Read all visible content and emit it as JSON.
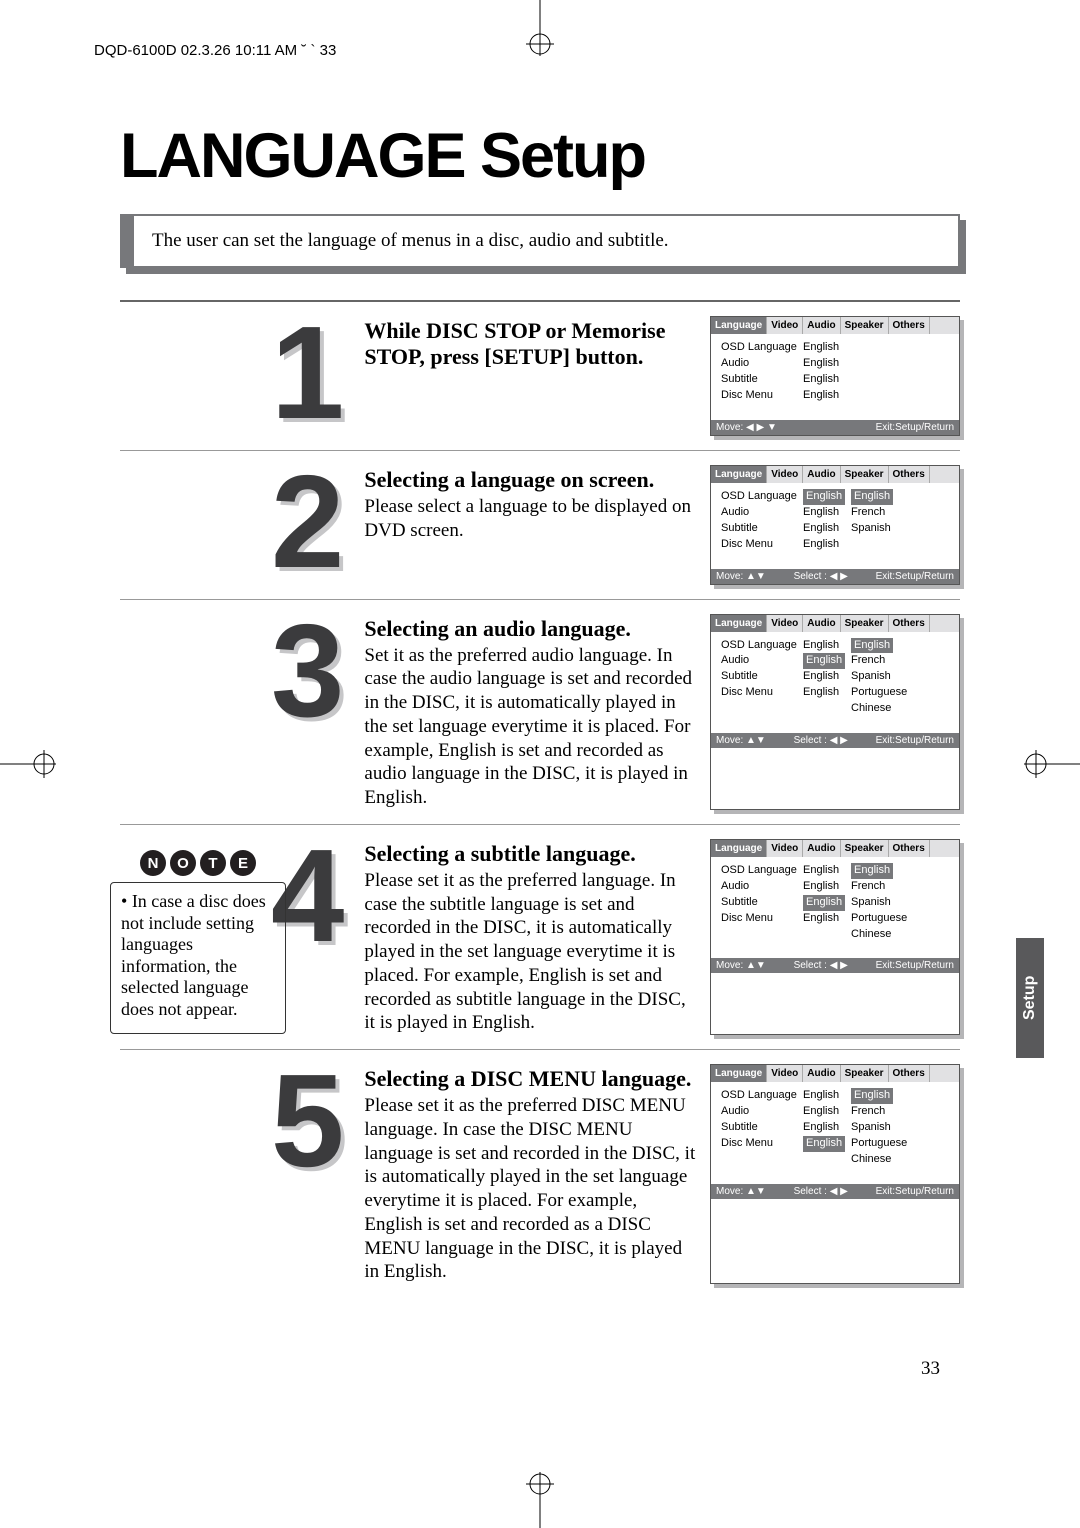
{
  "header": "DQD-6100D 02.3.26 10:11 AM ˘ ` 33",
  "title": "LANGUAGE Setup",
  "intro": "The user can set the language of menus in a disc, audio and subtitle.",
  "note_letters": [
    "N",
    "O",
    "T",
    "E"
  ],
  "note_text": "In case a disc does not include setting languages information, the selected language does not appear.",
  "side_tab": "Setup",
  "page_number": "33",
  "tabs": [
    "Language",
    "Video",
    "Audio",
    "Speaker",
    "Others"
  ],
  "rows_labels": [
    "OSD Language",
    "Audio",
    "Subtitle",
    "Disc Menu"
  ],
  "steps": [
    {
      "num": "1",
      "heading": "While DISC STOP or Memorise STOP, press [SETUP] button.",
      "body": "",
      "menu": {
        "highlight_row": null,
        "col2": [
          "English",
          "English",
          "English",
          "English"
        ],
        "col3": [],
        "footer_left": "Move: ◀ ▶ ▼",
        "footer_mid": "",
        "footer_right": "Exit:Setup/Return"
      }
    },
    {
      "num": "2",
      "heading": "Selecting a language on screen.",
      "body": "Please select a language to be displayed on DVD screen.",
      "menu": {
        "highlight_row": 0,
        "col2": [
          "English",
          "English",
          "English",
          "English"
        ],
        "col2_hl": [
          true,
          false,
          false,
          false
        ],
        "col3": [
          "English",
          "French",
          "Spanish"
        ],
        "footer_left": "Move: ▲▼",
        "footer_mid": "Select : ◀ ▶",
        "footer_right": "Exit:Setup/Return"
      }
    },
    {
      "num": "3",
      "heading": "Selecting an audio language.",
      "body": "Set it as the preferred audio language. In case the audio language is set and recorded in the DISC, it is automatically played in the set language everytime it is placed. For example, English is set and recorded as audio language in the DISC, it is played in English.",
      "menu": {
        "highlight_row": 1,
        "col2": [
          "English",
          "English",
          "English",
          "English"
        ],
        "col2_hl": [
          false,
          true,
          false,
          false
        ],
        "col3": [
          "English",
          "French",
          "Spanish",
          "Portuguese",
          "Chinese"
        ],
        "footer_left": "Move: ▲▼",
        "footer_mid": "Select : ◀ ▶",
        "footer_right": "Exit:Setup/Return"
      }
    },
    {
      "num": "4",
      "heading": "Selecting a subtitle language.",
      "body": "Please set it as the preferred language. In case the subtitle language is set and recorded in the DISC, it is automatically played in the set language everytime it is placed. For example, English is set and recorded as subtitle language in the DISC, it is played in English.",
      "menu": {
        "highlight_row": 2,
        "col2": [
          "English",
          "English",
          "English",
          "English"
        ],
        "col2_hl": [
          false,
          false,
          true,
          false
        ],
        "col3": [
          "English",
          "French",
          "Spanish",
          "Portuguese",
          "Chinese"
        ],
        "footer_left": "Move: ▲▼",
        "footer_mid": "Select : ◀ ▶",
        "footer_right": "Exit:Setup/Return"
      }
    },
    {
      "num": "5",
      "heading": "Selecting a DISC MENU language.",
      "body": "Please set it as the preferred DISC MENU language. In case the DISC MENU language is set and recorded in the DISC, it is automatically played in the set language everytime it is placed. For example, English is set and recorded as a DISC MENU language in the DISC, it is played in English.",
      "menu": {
        "highlight_row": 3,
        "col2": [
          "English",
          "English",
          "English",
          "English"
        ],
        "col2_hl": [
          false,
          false,
          false,
          true
        ],
        "col3": [
          "English",
          "French",
          "Spanish",
          "Portuguese",
          "Chinese"
        ],
        "footer_left": "Move: ▲▼",
        "footer_mid": "Select : ◀ ▶",
        "footer_right": "Exit:Setup/Return"
      }
    }
  ]
}
